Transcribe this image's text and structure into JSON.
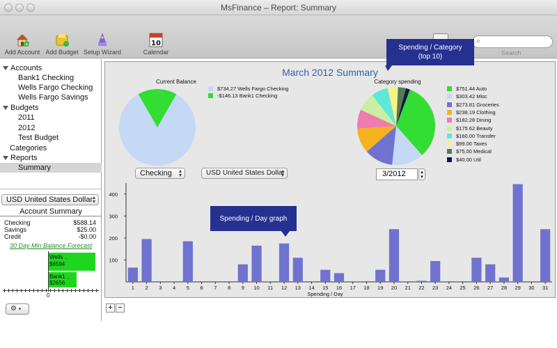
{
  "window": {
    "title": "MsFinance – Report: Summary"
  },
  "toolbar": {
    "add_account": "Add Account",
    "add_budget": "Add Budget",
    "setup_wizard": "Setup Wizard",
    "calendar": "Calendar",
    "calendar_day": "10",
    "search_label": "Search"
  },
  "sidebar": {
    "accounts_header": "Accounts",
    "accounts": [
      "Bank1 Checking",
      "Wells Fargo Checking",
      "Wells Fargo Savings"
    ],
    "budgets_header": "Budgets",
    "budgets": [
      "2011",
      "2012",
      "Test Budget"
    ],
    "categories": "Categories",
    "reports_header": "Reports",
    "reports": [
      "Summary"
    ],
    "currency": "USD United States Dollar",
    "summary_title": "Account Summary",
    "summary_rows": [
      {
        "label": "Checking",
        "value": "$588.14"
      },
      {
        "label": "Savings",
        "value": "$25.00"
      },
      {
        "label": "Credit",
        "value": "-$0.00"
      }
    ],
    "forecast_title": "30 Day Min Balance Forecast",
    "forecast_bars": [
      {
        "label": "Wells ..",
        "value": "$6594"
      },
      {
        "label": "Bank1 ..",
        "value": "$2656"
      }
    ],
    "forecast_axis_zero": "0"
  },
  "report": {
    "title": "March 2012 Summary",
    "balance_title": "Current Balance",
    "balance_legend": [
      {
        "text": "$734.27 Wells Fargo Checking",
        "color": "#c5d8f5"
      },
      {
        "text": "-$146.13 Bank1 Checking",
        "color": "#33dd33"
      }
    ],
    "account_select": "Checking",
    "currency_select": "USD United States Dollar",
    "category_title": "Category spending",
    "month_field": "3/2012",
    "callout_category": "Spending / Category\n(top 10)",
    "callout_day": "Spending / Day graph",
    "category_legend": [
      {
        "text": "$751.44 Auto",
        "color": "#33dd33"
      },
      {
        "text": "$303.42 Misc",
        "color": "#c5d8f5"
      },
      {
        "text": "$273.81 Groceries",
        "color": "#6f73cf"
      },
      {
        "text": "$238.19 Clothing",
        "color": "#f5b21c"
      },
      {
        "text": "$182.28 Dining",
        "color": "#f07bb0"
      },
      {
        "text": "$175.62 Beauty",
        "color": "#c9f0a0"
      },
      {
        "text": "$160.00 Transfer",
        "color": "#5fe8d7"
      },
      {
        "text": "$99.00 Taxes",
        "color": "#f5f287"
      },
      {
        "text": "$75.00 Medical",
        "color": "#567a4f"
      },
      {
        "text": "$40.00 Util",
        "color": "#0f1a4f"
      }
    ]
  },
  "chart_data": [
    {
      "type": "pie",
      "title": "Current Balance",
      "labels": [
        "Wells Fargo Checking",
        "Bank1 Checking"
      ],
      "values": [
        734.27,
        -146.13
      ],
      "colors": [
        "#c5d8f5",
        "#33dd33"
      ]
    },
    {
      "type": "pie",
      "title": "Category spending",
      "labels": [
        "Auto",
        "Misc",
        "Groceries",
        "Clothing",
        "Dining",
        "Beauty",
        "Transfer",
        "Taxes",
        "Medical",
        "Util"
      ],
      "values": [
        751.44,
        303.42,
        273.81,
        238.19,
        182.28,
        175.62,
        160.0,
        99.0,
        75.0,
        40.0
      ],
      "colors": [
        "#33dd33",
        "#c5d8f5",
        "#6f73cf",
        "#f5b21c",
        "#f07bb0",
        "#c9f0a0",
        "#5fe8d7",
        "#f5f287",
        "#567a4f",
        "#0f1a4f"
      ]
    },
    {
      "type": "bar",
      "xlabel": "Spending / Day",
      "ylabel": "",
      "categories": [
        "1",
        "2",
        "3",
        "4",
        "5",
        "6",
        "7",
        "8",
        "9",
        "10",
        "11",
        "12",
        "13",
        "14",
        "15",
        "16",
        "17",
        "18",
        "19",
        "20",
        "21",
        "22",
        "23",
        "24",
        "25",
        "26",
        "27",
        "28",
        "29",
        "30",
        "31"
      ],
      "values": [
        65,
        195,
        0,
        0,
        185,
        0,
        0,
        0,
        80,
        165,
        0,
        175,
        110,
        0,
        55,
        40,
        0,
        0,
        55,
        240,
        0,
        5,
        95,
        0,
        0,
        110,
        80,
        20,
        445,
        0,
        240
      ],
      "ylim": [
        0,
        450
      ],
      "yticks": [
        100,
        200,
        300,
        400
      ],
      "color": "#6f73cf"
    }
  ]
}
